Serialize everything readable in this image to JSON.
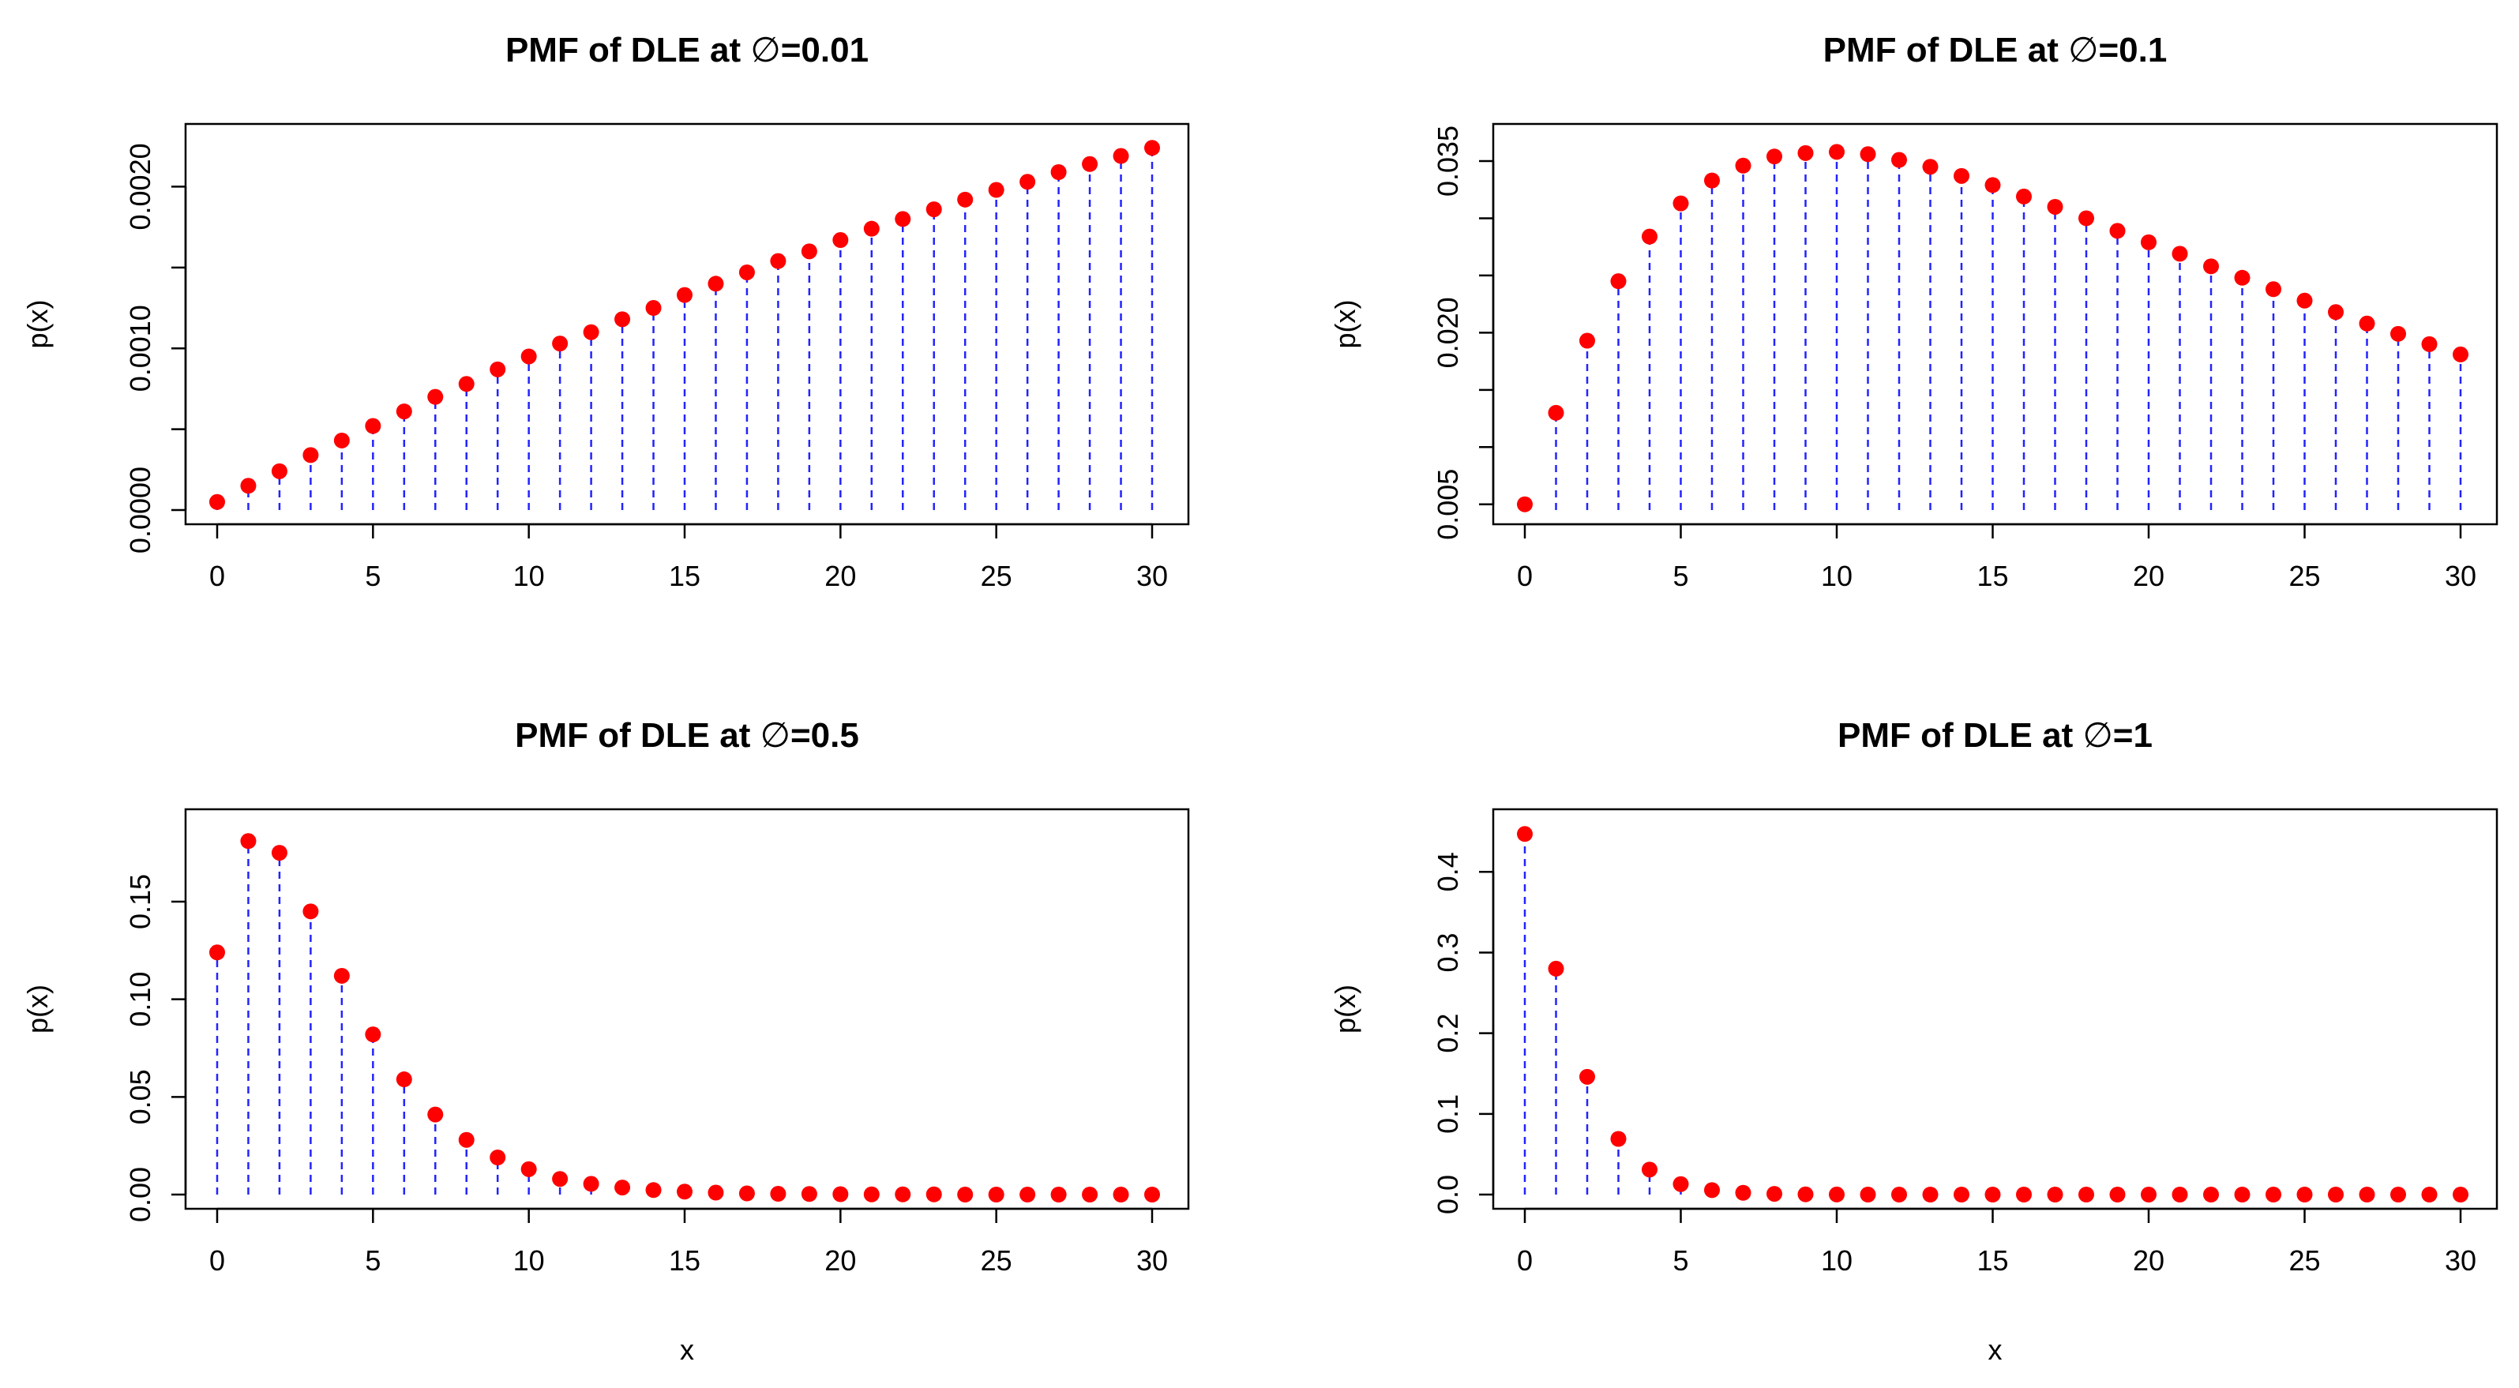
{
  "colors": {
    "stem": "#2323ff",
    "point": "#ff0000",
    "axis": "#000000",
    "background": "#ffffff"
  },
  "chart_data": [
    {
      "type": "scatter",
      "title_prefix": "PMF of DLE at ",
      "title_symbol": "∅",
      "title_suffix": "=0.01",
      "xlabel": "",
      "ylabel": "p(x)",
      "xlim": [
        0,
        30
      ],
      "ylim": [
        0,
        0.0023
      ],
      "xticks": [
        0,
        5,
        10,
        15,
        20,
        25,
        30
      ],
      "yticks": [
        0,
        0.001,
        0.002
      ],
      "yticks_minor": [
        0.0005,
        0.0015
      ],
      "ytick_labels": [
        "0.0000",
        "0.0010",
        "0.0020"
      ],
      "x": [
        0,
        1,
        2,
        3,
        4,
        5,
        6,
        7,
        8,
        9,
        10,
        11,
        12,
        13,
        14,
        15,
        16,
        17,
        18,
        19,
        20,
        21,
        22,
        23,
        24,
        25,
        26,
        27,
        28,
        29,
        30
      ],
      "values": [
        5e-05,
        0.00015,
        0.00024,
        0.00034,
        0.00043,
        0.00052,
        0.00061,
        0.0007,
        0.00078,
        0.00087,
        0.00095,
        0.00103,
        0.0011,
        0.00118,
        0.00125,
        0.00133,
        0.0014,
        0.00147,
        0.00154,
        0.0016,
        0.00167,
        0.00174,
        0.0018,
        0.00186,
        0.00192,
        0.00198,
        0.00203,
        0.00209,
        0.00214,
        0.00219,
        0.00224
      ]
    },
    {
      "type": "scatter",
      "title_prefix": "PMF of DLE at ",
      "title_symbol": "∅",
      "title_suffix": "=0.1",
      "xlabel": "",
      "ylabel": "p(x)",
      "xlim": [
        0,
        30
      ],
      "ylim": [
        0.0045,
        0.037
      ],
      "xticks": [
        0,
        5,
        10,
        15,
        20,
        25,
        30
      ],
      "yticks": [
        0.005,
        0.02,
        0.035
      ],
      "yticks_minor": [
        0.01,
        0.015,
        0.025,
        0.03
      ],
      "ytick_labels": [
        "0.005",
        "0.020",
        "0.035"
      ],
      "x": [
        0,
        1,
        2,
        3,
        4,
        5,
        6,
        7,
        8,
        9,
        10,
        11,
        12,
        13,
        14,
        15,
        16,
        17,
        18,
        19,
        20,
        21,
        22,
        23,
        24,
        25,
        26,
        27,
        28,
        29,
        30
      ],
      "values": [
        0.005,
        0.013,
        0.0193,
        0.0245,
        0.0284,
        0.0313,
        0.0333,
        0.0346,
        0.0354,
        0.0357,
        0.0358,
        0.0356,
        0.0351,
        0.0345,
        0.0337,
        0.0329,
        0.0319,
        0.031,
        0.03,
        0.0289,
        0.0279,
        0.0269,
        0.0258,
        0.0248,
        0.0238,
        0.0228,
        0.0218,
        0.0208,
        0.0199,
        0.019,
        0.0181
      ]
    },
    {
      "type": "scatter",
      "title_prefix": "PMF of DLE at ",
      "title_symbol": "∅",
      "title_suffix": "=0.5",
      "xlabel": "x",
      "ylabel": "p(x)",
      "xlim": [
        0,
        30
      ],
      "ylim": [
        0,
        0.19
      ],
      "xticks": [
        0,
        5,
        10,
        15,
        20,
        25,
        30
      ],
      "yticks": [
        0,
        0.05,
        0.1,
        0.15
      ],
      "yticks_minor": [],
      "ytick_labels": [
        "0.00",
        "0.05",
        "0.10",
        "0.15"
      ],
      "x": [
        0,
        1,
        2,
        3,
        4,
        5,
        6,
        7,
        8,
        9,
        10,
        11,
        12,
        13,
        14,
        15,
        16,
        17,
        18,
        19,
        20,
        21,
        22,
        23,
        24,
        25,
        26,
        27,
        28,
        29,
        30
      ],
      "values": [
        0.124,
        0.181,
        0.175,
        0.145,
        0.112,
        0.082,
        0.059,
        0.041,
        0.028,
        0.019,
        0.013,
        0.008,
        0.0055,
        0.0036,
        0.0023,
        0.0015,
        0.001,
        0.0006,
        0.0004,
        0.0003,
        0.0002,
        0.0001,
        0.0001,
        0.0001,
        0,
        0,
        0,
        0,
        0,
        0,
        0
      ]
    },
    {
      "type": "scatter",
      "title_prefix": "PMF of DLE at ",
      "title_symbol": "∅",
      "title_suffix": "=1",
      "xlabel": "x",
      "ylabel": "p(x)",
      "xlim": [
        0,
        30
      ],
      "ylim": [
        0,
        0.46
      ],
      "xticks": [
        0,
        5,
        10,
        15,
        20,
        25,
        30
      ],
      "yticks": [
        0,
        0.1,
        0.2,
        0.3,
        0.4
      ],
      "yticks_minor": [],
      "ytick_labels": [
        "0.0",
        "0.1",
        "0.2",
        "0.3",
        "0.4"
      ],
      "x": [
        0,
        1,
        2,
        3,
        4,
        5,
        6,
        7,
        8,
        9,
        10,
        11,
        12,
        13,
        14,
        15,
        16,
        17,
        18,
        19,
        20,
        21,
        22,
        23,
        24,
        25,
        26,
        27,
        28,
        29,
        30
      ],
      "values": [
        0.447,
        0.28,
        0.146,
        0.069,
        0.031,
        0.013,
        0.0055,
        0.0022,
        0.0009,
        0.0003,
        0.0001,
        0,
        0,
        0,
        0,
        0,
        0,
        0,
        0,
        0,
        0,
        0,
        0,
        0,
        0,
        0,
        0,
        0,
        0,
        0,
        0
      ]
    }
  ]
}
